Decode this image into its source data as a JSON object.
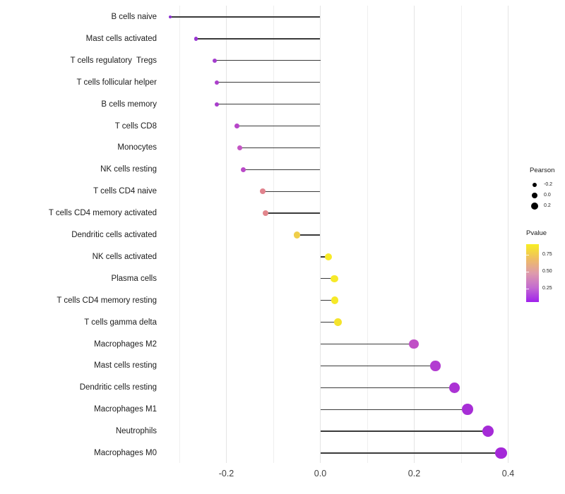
{
  "chart_data": {
    "type": "lollipop",
    "title": "",
    "x_axis": {
      "tick_labels": [
        "-0.2",
        "0.0",
        "0.2",
        "0.4"
      ],
      "tick_values": [
        -0.2,
        0.0,
        0.2,
        0.4
      ],
      "gridline_values": [
        -0.3,
        -0.2,
        -0.1,
        0.0,
        0.1,
        0.2,
        0.3,
        0.4
      ],
      "range": [
        -0.34,
        0.45
      ]
    },
    "rows": [
      {
        "label": "B cells naive",
        "pearson": -0.32,
        "color": "#8B2FD1"
      },
      {
        "label": "Mast cells activated",
        "pearson": -0.265,
        "color": "#9935D2"
      },
      {
        "label": "T cells regulatory  Tregs",
        "pearson": -0.225,
        "color": "#A43CCE"
      },
      {
        "label": "T cells follicular helper",
        "pearson": -0.221,
        "color": "#AC40CB"
      },
      {
        "label": "B cells memory",
        "pearson": -0.22,
        "color": "#A83ECC"
      },
      {
        "label": "T cells CD8",
        "pearson": -0.177,
        "color": "#B746C9"
      },
      {
        "label": "Monocytes",
        "pearson": -0.172,
        "color": "#C455C4"
      },
      {
        "label": "NK cells resting",
        "pearson": -0.164,
        "color": "#BA4AC8"
      },
      {
        "label": "T cells CD4 naive",
        "pearson": -0.122,
        "color": "#E1838E"
      },
      {
        "label": "T cells CD4 memory activated",
        "pearson": -0.117,
        "color": "#E2868C"
      },
      {
        "label": "Dendritic cells activated",
        "pearson": -0.049,
        "color": "#EFCE4A"
      },
      {
        "label": "NK cells activated",
        "pearson": 0.017,
        "color": "#F8EB27"
      },
      {
        "label": "Plasma cells",
        "pearson": 0.03,
        "color": "#F6E928"
      },
      {
        "label": "T cells CD4 memory resting",
        "pearson": 0.031,
        "color": "#F6E928"
      },
      {
        "label": "T cells gamma delta",
        "pearson": 0.038,
        "color": "#F4E32C"
      },
      {
        "label": "Macrophages M2",
        "pearson": 0.199,
        "color": "#C04FC6"
      },
      {
        "label": "Mast cells resting",
        "pearson": 0.245,
        "color": "#B23CD1"
      },
      {
        "label": "Dendritic cells resting",
        "pearson": 0.286,
        "color": "#AB33D4"
      },
      {
        "label": "Macrophages M1",
        "pearson": 0.314,
        "color": "#A72ED6"
      },
      {
        "label": "Neutrophils",
        "pearson": 0.357,
        "color": "#A52BD7"
      },
      {
        "label": "Macrophages M0",
        "pearson": 0.385,
        "color": "#A428D8"
      }
    ],
    "legend": {
      "size": {
        "title": "Pearson",
        "items": [
          {
            "label": "-0.2",
            "diameter": 6
          },
          {
            "label": "0.0",
            "diameter": 8
          },
          {
            "label": "0.2",
            "diameter": 10
          }
        ]
      },
      "color": {
        "title": "Pvalue",
        "tick_labels": [
          "0.75",
          "0.50",
          "0.25"
        ],
        "gradient_top_to_bottom": [
          "#F8EE22",
          "#EFBE62",
          "#DE9BAB",
          "#C46BD0",
          "#A021EC"
        ]
      }
    },
    "styles": {
      "stem_color": "#3a3a3a",
      "gridline_major_color": "#e4e4e4",
      "gridline_minor_color": "#efefef",
      "label_color": "#1c1c1c",
      "tick_label_color": "#404040",
      "background": "#ffffff"
    }
  }
}
